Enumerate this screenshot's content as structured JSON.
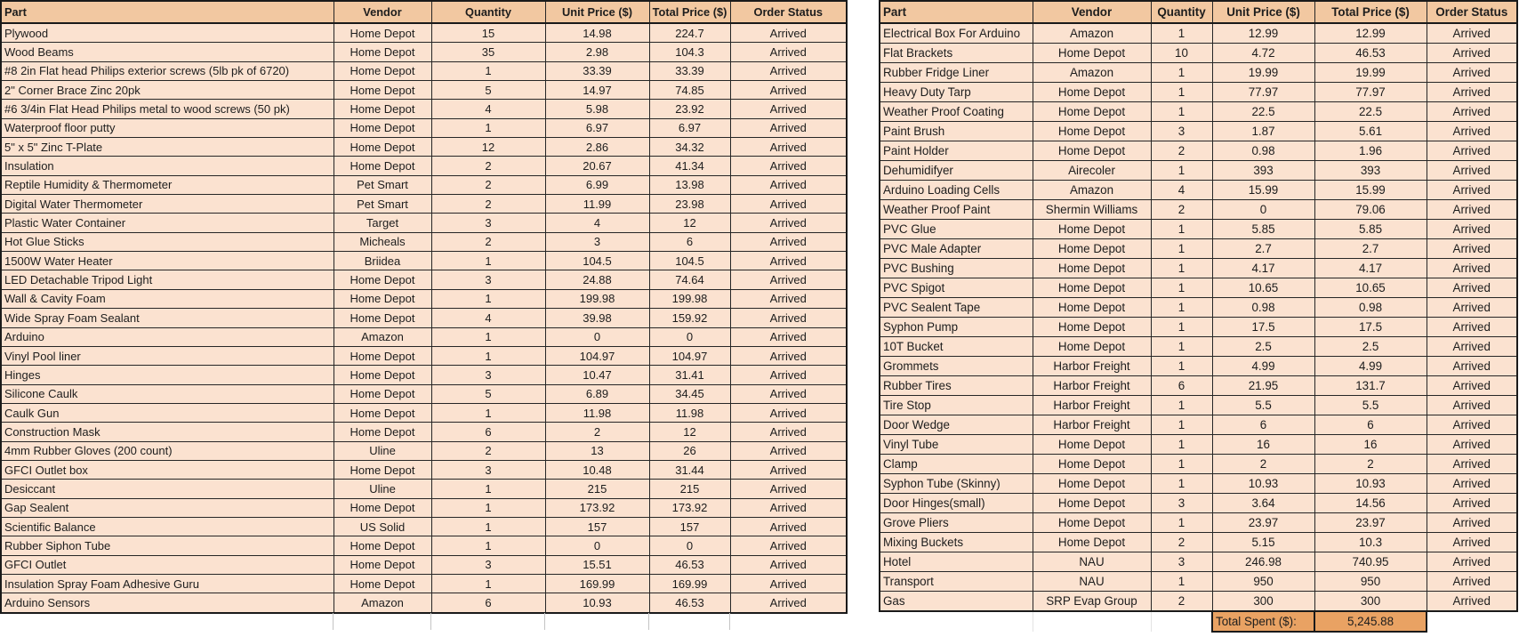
{
  "colors": {
    "header_bg": "#f2c8a1",
    "row_bg": "#fbe2d0",
    "total_bg": "#e9a263",
    "border": "#1a1a1a",
    "text": "#1d1d1d"
  },
  "left_table": {
    "columns": [
      "Part",
      "Vendor",
      "Quantity",
      "Unit Price ($)",
      "Total Price ($)",
      "Order Status"
    ],
    "rows": [
      [
        "Plywood",
        "Home Depot",
        "15",
        "14.98",
        "224.7",
        "Arrived"
      ],
      [
        "Wood Beams",
        "Home Depot",
        "35",
        "2.98",
        "104.3",
        "Arrived"
      ],
      [
        "#8 2in Flat head Philips exterior screws (5lb pk of 6720)",
        "Home Depot",
        "1",
        "33.39",
        "33.39",
        "Arrived"
      ],
      [
        "2\" Corner Brace Zinc 20pk",
        "Home Depot",
        "5",
        "14.97",
        "74.85",
        "Arrived"
      ],
      [
        "#6 3/4in Flat Head Philips metal to wood screws (50 pk)",
        "Home Depot",
        "4",
        "5.98",
        "23.92",
        "Arrived"
      ],
      [
        "Waterproof floor putty",
        "Home Depot",
        "1",
        "6.97",
        "6.97",
        "Arrived"
      ],
      [
        "5\" x 5\" Zinc T-Plate",
        "Home Depot",
        "12",
        "2.86",
        "34.32",
        "Arrived"
      ],
      [
        "Insulation",
        "Home Depot",
        "2",
        "20.67",
        "41.34",
        "Arrived"
      ],
      [
        "Reptile Humidity & Thermometer",
        "Pet Smart",
        "2",
        "6.99",
        "13.98",
        "Arrived"
      ],
      [
        "Digital Water Thermometer",
        "Pet Smart",
        "2",
        "11.99",
        "23.98",
        "Arrived"
      ],
      [
        "Plastic Water Container",
        "Target",
        "3",
        "4",
        "12",
        "Arrived"
      ],
      [
        "Hot Glue Sticks",
        "Micheals",
        "2",
        "3",
        "6",
        "Arrived"
      ],
      [
        "1500W Water Heater",
        "Briidea",
        "1",
        "104.5",
        "104.5",
        "Arrived"
      ],
      [
        "LED Detachable Tripod Light",
        "Home Depot",
        "3",
        "24.88",
        "74.64",
        "Arrived"
      ],
      [
        "Wall & Cavity Foam",
        "Home Depot",
        "1",
        "199.98",
        "199.98",
        "Arrived"
      ],
      [
        "Wide Spray Foam Sealant",
        "Home Depot",
        "4",
        "39.98",
        "159.92",
        "Arrived"
      ],
      [
        "Arduino",
        "Amazon",
        "1",
        "0",
        "0",
        "Arrived"
      ],
      [
        "Vinyl Pool liner",
        "Home Depot",
        "1",
        "104.97",
        "104.97",
        "Arrived"
      ],
      [
        "Hinges",
        "Home Depot",
        "3",
        "10.47",
        "31.41",
        "Arrived"
      ],
      [
        "Silicone Caulk",
        "Home Depot",
        "5",
        "6.89",
        "34.45",
        "Arrived"
      ],
      [
        "Caulk Gun",
        "Home Depot",
        "1",
        "11.98",
        "11.98",
        "Arrived"
      ],
      [
        "Construction Mask",
        "Home Depot",
        "6",
        "2",
        "12",
        "Arrived"
      ],
      [
        "4mm Rubber Gloves (200 count)",
        "Uline",
        "2",
        "13",
        "26",
        "Arrived"
      ],
      [
        "GFCI Outlet box",
        "Home Depot",
        "3",
        "10.48",
        "31.44",
        "Arrived"
      ],
      [
        "Desiccant",
        "Uline",
        "1",
        "215",
        "215",
        "Arrived"
      ],
      [
        "Gap Sealent",
        "Home Depot",
        "1",
        "173.92",
        "173.92",
        "Arrived"
      ],
      [
        "Scientific Balance",
        "US Solid",
        "1",
        "157",
        "157",
        "Arrived"
      ],
      [
        "Rubber Siphon Tube",
        "Home Depot",
        "1",
        "0",
        "0",
        "Arrived"
      ],
      [
        "GFCI Outlet",
        "Home Depot",
        "3",
        "15.51",
        "46.53",
        "Arrived"
      ],
      [
        "Insulation Spray Foam Adhesive Guru",
        "Home Depot",
        "1",
        "169.99",
        "169.99",
        "Arrived"
      ],
      [
        "Arduino Sensors",
        "Amazon",
        "6",
        "10.93",
        "46.53",
        "Arrived"
      ]
    ]
  },
  "right_table": {
    "columns": [
      "Part",
      "Vendor",
      "Quantity",
      "Unit Price ($)",
      "Total Price ($)",
      "Order Status"
    ],
    "rows": [
      [
        "Electrical Box For Arduino",
        "Amazon",
        "1",
        "12.99",
        "12.99",
        "Arrived"
      ],
      [
        "Flat Brackets",
        "Home Depot",
        "10",
        "4.72",
        "46.53",
        "Arrived"
      ],
      [
        "Rubber Fridge Liner",
        "Amazon",
        "1",
        "19.99",
        "19.99",
        "Arrived"
      ],
      [
        "Heavy Duty Tarp",
        "Home Depot",
        "1",
        "77.97",
        "77.97",
        "Arrived"
      ],
      [
        "Weather Proof Coating",
        "Home Depot",
        "1",
        "22.5",
        "22.5",
        "Arrived"
      ],
      [
        "Paint Brush",
        "Home Depot",
        "3",
        "1.87",
        "5.61",
        "Arrived"
      ],
      [
        "Paint Holder",
        "Home Depot",
        "2",
        "0.98",
        "1.96",
        "Arrived"
      ],
      [
        "Dehumidifyer",
        "Airecoler",
        "1",
        "393",
        "393",
        "Arrived"
      ],
      [
        "Arduino Loading Cells",
        "Amazon",
        "4",
        "15.99",
        "15.99",
        "Arrived"
      ],
      [
        "Weather Proof Paint",
        "Shermin Williams",
        "2",
        "0",
        "79.06",
        "Arrived"
      ],
      [
        "PVC Glue",
        "Home Depot",
        "1",
        "5.85",
        "5.85",
        "Arrived"
      ],
      [
        "PVC Male Adapter",
        "Home Depot",
        "1",
        "2.7",
        "2.7",
        "Arrived"
      ],
      [
        "PVC Bushing",
        "Home Depot",
        "1",
        "4.17",
        "4.17",
        "Arrived"
      ],
      [
        "PVC Spigot",
        "Home Depot",
        "1",
        "10.65",
        "10.65",
        "Arrived"
      ],
      [
        "PVC Sealent Tape",
        "Home Depot",
        "1",
        "0.98",
        "0.98",
        "Arrived"
      ],
      [
        "Syphon Pump",
        "Home Depot",
        "1",
        "17.5",
        "17.5",
        "Arrived"
      ],
      [
        "10T Bucket",
        "Home Depot",
        "1",
        "2.5",
        "2.5",
        "Arrived"
      ],
      [
        "Grommets",
        "Harbor Freight",
        "1",
        "4.99",
        "4.99",
        "Arrived"
      ],
      [
        "Rubber Tires",
        "Harbor Freight",
        "6",
        "21.95",
        "131.7",
        "Arrived"
      ],
      [
        "Tire Stop",
        "Harbor Freight",
        "1",
        "5.5",
        "5.5",
        "Arrived"
      ],
      [
        "Door Wedge",
        "Harbor Freight",
        "1",
        "6",
        "6",
        "Arrived"
      ],
      [
        "Vinyl Tube",
        "Home Depot",
        "1",
        "16",
        "16",
        "Arrived"
      ],
      [
        "Clamp",
        "Home Depot",
        "1",
        "2",
        "2",
        "Arrived"
      ],
      [
        "Syphon Tube (Skinny)",
        "Home Depot",
        "1",
        "10.93",
        "10.93",
        "Arrived"
      ],
      [
        "Door Hinges(small)",
        "Home Depot",
        "3",
        "3.64",
        "14.56",
        "Arrived"
      ],
      [
        "Grove Pliers",
        "Home Depot",
        "1",
        "23.97",
        "23.97",
        "Arrived"
      ],
      [
        "Mixing Buckets",
        "Home Depot",
        "2",
        "5.15",
        "10.3",
        "Arrived"
      ],
      [
        "Hotel",
        "NAU",
        "3",
        "246.98",
        "740.95",
        "Arrived"
      ],
      [
        "Transport",
        "NAU",
        "1",
        "950",
        "950",
        "Arrived"
      ],
      [
        "Gas",
        "SRP Evap Group",
        "2",
        "300",
        "300",
        "Arrived"
      ]
    ],
    "total_label": "Total Spent ($):",
    "total_value": "5,245.88"
  }
}
